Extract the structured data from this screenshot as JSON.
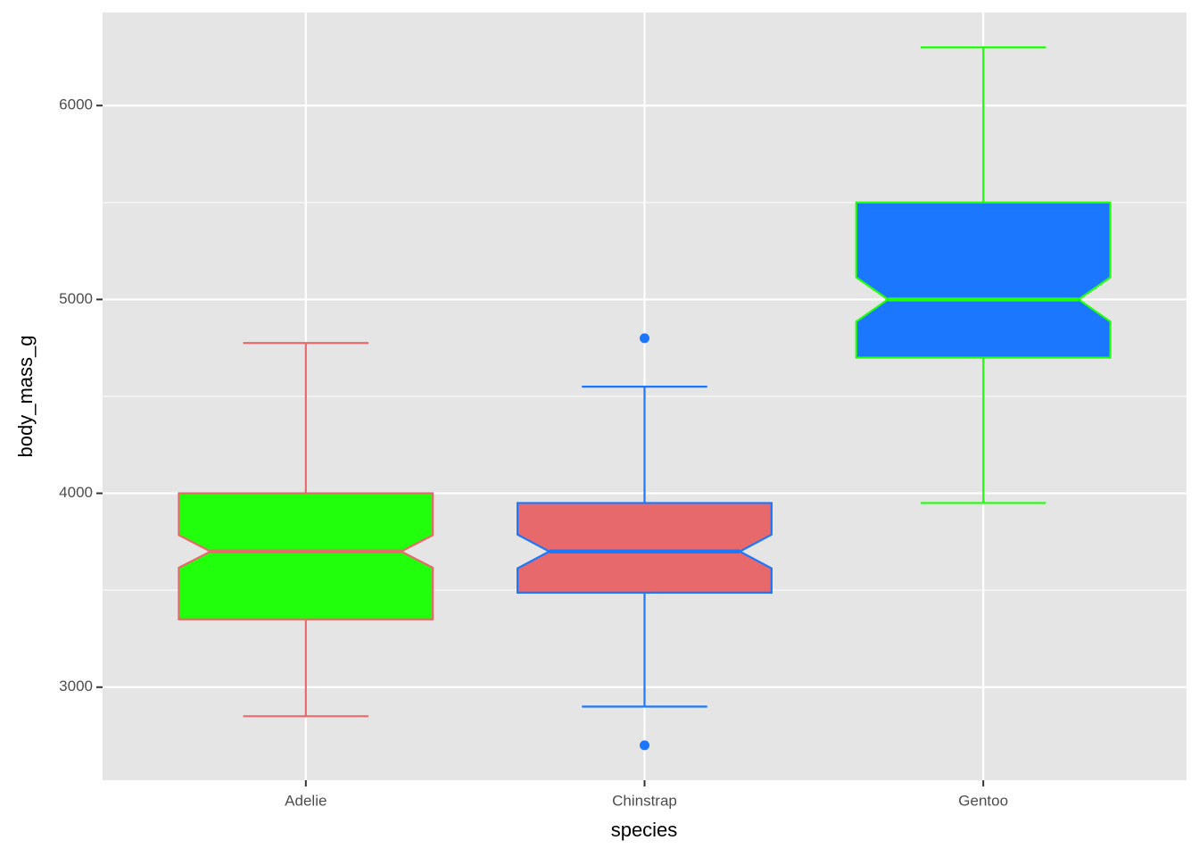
{
  "chart_data": {
    "type": "boxplot",
    "x_label": "species",
    "y_label": "body_mass_g",
    "categories": [
      "Adelie",
      "Chinstrap",
      "Gentoo"
    ],
    "boxes": [
      {
        "min": 2850,
        "q1": 3350,
        "median": 3700,
        "q3": 4000,
        "max": 4775,
        "notch_low": 3616,
        "notch_high": 3784,
        "outliers": [],
        "fill": "#21ff0c",
        "color": "#e8696b"
      },
      {
        "min": 2900,
        "q1": 3487.5,
        "median": 3700,
        "q3": 3950,
        "max": 4550,
        "notch_low": 3613,
        "notch_high": 3787,
        "outliers": [
          4800,
          2700
        ],
        "fill": "#e8696b",
        "color": "#1c77ff"
      },
      {
        "min": 3950,
        "q1": 4700,
        "median": 5000,
        "q3": 5500,
        "max": 6300,
        "notch_low": 4886,
        "notch_high": 5114,
        "outliers": [],
        "fill": "#1c77ff",
        "color": "#21ff0c"
      }
    ],
    "ylim": [
      2520,
      6480
    ],
    "yticks": [
      3000,
      4000,
      5000,
      6000
    ],
    "minor_yticks": [
      3500,
      4500,
      5500
    ],
    "grid": true
  }
}
